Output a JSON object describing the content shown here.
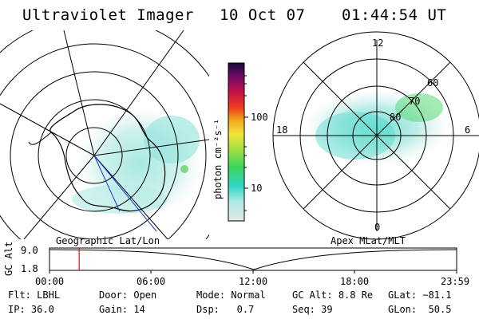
{
  "header": {
    "title": "Ultraviolet Imager",
    "date": "10 Oct 07",
    "time": "01:44:54 UT"
  },
  "left_map": {
    "label": "Geographic Lat/Lon"
  },
  "right_map": {
    "label": "Apex MLat/MLT",
    "mlt_labels": [
      "12",
      "18",
      "6",
      "0"
    ],
    "lat_labels": [
      "60",
      "70",
      "80"
    ]
  },
  "colorbar": {
    "unit_label": "photon cm⁻²s⁻¹",
    "ticks": [
      "100",
      "10"
    ],
    "scale": "log"
  },
  "gc_alt_plot": {
    "ylabel": "GC Alt",
    "yticks": [
      "9.0",
      "1.8"
    ],
    "xticks": [
      "00:00",
      "06:00",
      "12:00",
      "18:00",
      "23:59"
    ],
    "current_time_marker_hours": 1.748
  },
  "status": {
    "filter": {
      "label": "Flt:",
      "value": "LBHL"
    },
    "ip": {
      "label": "IP:",
      "value": "36.0"
    },
    "door": {
      "label": "Door:",
      "value": "Open"
    },
    "gain": {
      "label": "Gain:",
      "value": "14"
    },
    "mode": {
      "label": "Mode:",
      "value": "Normal"
    },
    "dsp": {
      "label": "Dsp:",
      "value": "0.7"
    },
    "gc_alt": {
      "label": "GC Alt:",
      "value": "8.8 Re"
    },
    "seq": {
      "label": "Seq:",
      "value": "39"
    },
    "glat": {
      "label": "GLat:",
      "value": "−81.1"
    },
    "glon": {
      "label": "GLon:",
      "value": "50.5"
    }
  }
}
